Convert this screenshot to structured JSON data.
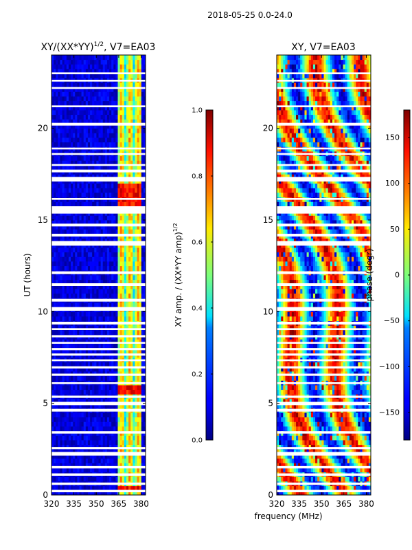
{
  "figure": {
    "suptitle": "2018-05-25 0.0-24.0",
    "shared_xlabel": "frequency (MHz)"
  },
  "chart_data": [
    {
      "type": "heatmap",
      "title": "XY/(XX*YY)",
      "title_superscript": "1/2",
      "title_suffix": ", V7=EA03",
      "xlabel": "",
      "ylabel": "UT (hours)",
      "xlim": [
        320,
        383
      ],
      "ylim": [
        0,
        24
      ],
      "xticks": [
        320,
        335,
        350,
        365,
        380
      ],
      "yticks": [
        0,
        5,
        10,
        15,
        20
      ],
      "colormap": "jet",
      "background_value": 0.03,
      "bright_channel_range": [
        364,
        380
      ],
      "flagged_bands_hours": [
        [
          0.15,
          0.28
        ],
        [
          0.55,
          0.68
        ],
        [
          1.05,
          1.18
        ],
        [
          1.45,
          1.58
        ],
        [
          2.15,
          2.35
        ],
        [
          2.5,
          2.62
        ],
        [
          3.35,
          3.48
        ],
        [
          4.55,
          4.7
        ],
        [
          4.9,
          5.08
        ],
        [
          5.3,
          5.42
        ],
        [
          6.05,
          6.15
        ],
        [
          6.5,
          6.62
        ],
        [
          6.9,
          7.02
        ],
        [
          7.3,
          7.4
        ],
        [
          7.6,
          7.72
        ],
        [
          7.9,
          8.02
        ],
        [
          8.25,
          8.35
        ],
        [
          8.6,
          8.72
        ],
        [
          9.0,
          9.1
        ],
        [
          9.3,
          9.45
        ],
        [
          10.05,
          10.25
        ],
        [
          10.55,
          10.7
        ],
        [
          11.4,
          11.55
        ],
        [
          12.05,
          12.2
        ],
        [
          13.6,
          13.85
        ],
        [
          14.1,
          14.25
        ],
        [
          14.65,
          14.8
        ],
        [
          15.35,
          15.75
        ],
        [
          16.1,
          16.2
        ],
        [
          17.1,
          17.35
        ],
        [
          17.6,
          17.75
        ],
        [
          17.95,
          18.05
        ],
        [
          18.55,
          18.65
        ],
        [
          18.85,
          18.95
        ],
        [
          20.15,
          20.3
        ],
        [
          21.15,
          21.25
        ],
        [
          22.15,
          22.25
        ],
        [
          22.55,
          22.65
        ],
        [
          22.95,
          23.05
        ]
      ],
      "colorbar": {
        "label": "XY amp. / (XX*YY amp)",
        "label_superscript": "1/2",
        "range": [
          0.0,
          1.0
        ],
        "ticks": [
          "0.0",
          "0.2",
          "0.4",
          "0.6",
          "0.8",
          "1.0"
        ]
      }
    },
    {
      "type": "heatmap",
      "title": "XY, V7=EA03",
      "xlabel": "frequency (MHz)",
      "ylabel": "",
      "xlim": [
        320,
        383
      ],
      "ylim": [
        0,
        24
      ],
      "xticks": [
        320,
        335,
        350,
        365,
        380
      ],
      "yticks": [
        0,
        5,
        10,
        15,
        20
      ],
      "colormap": "jet",
      "flagged_bands_hours": [
        [
          0.15,
          0.28
        ],
        [
          0.55,
          0.68
        ],
        [
          1.05,
          1.18
        ],
        [
          1.45,
          1.58
        ],
        [
          2.15,
          2.35
        ],
        [
          2.5,
          2.62
        ],
        [
          3.35,
          3.48
        ],
        [
          4.55,
          4.7
        ],
        [
          4.9,
          5.08
        ],
        [
          5.3,
          5.42
        ],
        [
          6.05,
          6.15
        ],
        [
          6.5,
          6.62
        ],
        [
          6.9,
          7.02
        ],
        [
          7.3,
          7.4
        ],
        [
          7.6,
          7.72
        ],
        [
          7.9,
          8.02
        ],
        [
          8.25,
          8.35
        ],
        [
          8.6,
          8.72
        ],
        [
          9.0,
          9.1
        ],
        [
          9.3,
          9.45
        ],
        [
          10.05,
          10.25
        ],
        [
          10.55,
          10.7
        ],
        [
          11.4,
          11.55
        ],
        [
          12.05,
          12.2
        ],
        [
          13.6,
          13.85
        ],
        [
          14.1,
          14.25
        ],
        [
          14.65,
          14.8
        ],
        [
          15.35,
          15.75
        ],
        [
          16.1,
          16.2
        ],
        [
          17.1,
          17.35
        ],
        [
          17.6,
          17.75
        ],
        [
          17.95,
          18.05
        ],
        [
          18.55,
          18.65
        ],
        [
          18.85,
          18.95
        ],
        [
          20.15,
          20.3
        ],
        [
          21.15,
          21.25
        ],
        [
          22.15,
          22.25
        ],
        [
          22.55,
          22.65
        ],
        [
          22.95,
          23.05
        ]
      ],
      "colorbar": {
        "label": "phase (degr)",
        "range": [
          -180,
          180
        ],
        "ticks": [
          "150",
          "100",
          "50",
          "0",
          "−50",
          "−100",
          "−150"
        ]
      }
    }
  ]
}
